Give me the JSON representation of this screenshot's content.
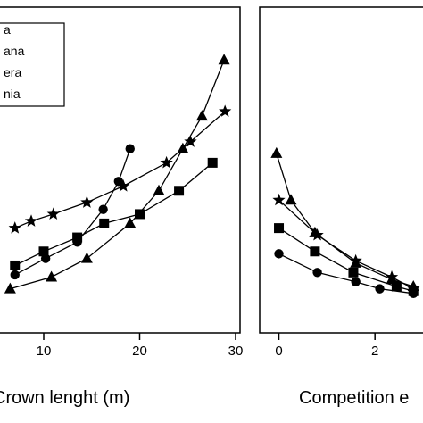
{
  "chart_data": [
    {
      "type": "line",
      "title": "",
      "xlabel": "Crown lenght (m)",
      "ylabel": "",
      "xlim": [
        6,
        30
      ],
      "ylim": [
        0,
        6.5
      ],
      "xticks": [
        10,
        20,
        30
      ],
      "grid": false,
      "legend": {
        "placement": "top-left",
        "entries": [
          "a",
          "ana",
          "era",
          "nia"
        ]
      },
      "series": [
        {
          "name": "a",
          "marker": "circle",
          "x": [
            7,
            10.2,
            13.5,
            16.2,
            17.8,
            19
          ],
          "y": [
            0.9,
            1.25,
            1.6,
            2.3,
            2.9,
            3.6
          ]
        },
        {
          "name": "ana",
          "marker": "triangle",
          "x": [
            6.5,
            10.8,
            14.5,
            19,
            22,
            24.5,
            26.5,
            28.8
          ],
          "y": [
            0.6,
            0.85,
            1.25,
            2.0,
            2.7,
            3.6,
            4.3,
            5.5
          ]
        },
        {
          "name": "era",
          "marker": "square",
          "x": [
            7,
            10,
            13.5,
            16.3,
            20,
            24.1,
            27.6
          ],
          "y": [
            1.1,
            1.4,
            1.7,
            2.0,
            2.2,
            2.7,
            3.3
          ]
        },
        {
          "name": "nia",
          "marker": "star",
          "x": [
            7,
            8.7,
            11,
            14.5,
            18.3,
            22.8,
            25.3,
            28.9
          ],
          "y": [
            1.9,
            2.05,
            2.2,
            2.45,
            2.8,
            3.3,
            3.75,
            4.4
          ]
        }
      ]
    },
    {
      "type": "line",
      "title": "",
      "xlabel": "Competition e",
      "ylabel": "",
      "xlim": [
        -0.4,
        3.0
      ],
      "ylim": [
        0,
        6.5
      ],
      "xticks": [
        0,
        2
      ],
      "grid": false,
      "series": [
        {
          "marker": "circle",
          "x": [
            0,
            0.8,
            1.6,
            2.1,
            2.8
          ],
          "y": [
            1.35,
            0.95,
            0.75,
            0.6,
            0.5
          ]
        },
        {
          "marker": "triangle",
          "x": [
            -0.05,
            0.25,
            0.75,
            1.6,
            2.35,
            2.8
          ],
          "y": [
            3.5,
            2.5,
            1.8,
            1.15,
            0.8,
            0.65
          ]
        },
        {
          "marker": "square",
          "x": [
            0,
            0.75,
            1.55,
            2.45,
            2.8
          ],
          "y": [
            1.9,
            1.4,
            0.95,
            0.65,
            0.55
          ]
        },
        {
          "marker": "star",
          "x": [
            0,
            0.8,
            1.6,
            2.35,
            2.8
          ],
          "y": [
            2.5,
            1.75,
            1.2,
            0.85,
            0.6
          ]
        }
      ]
    }
  ]
}
